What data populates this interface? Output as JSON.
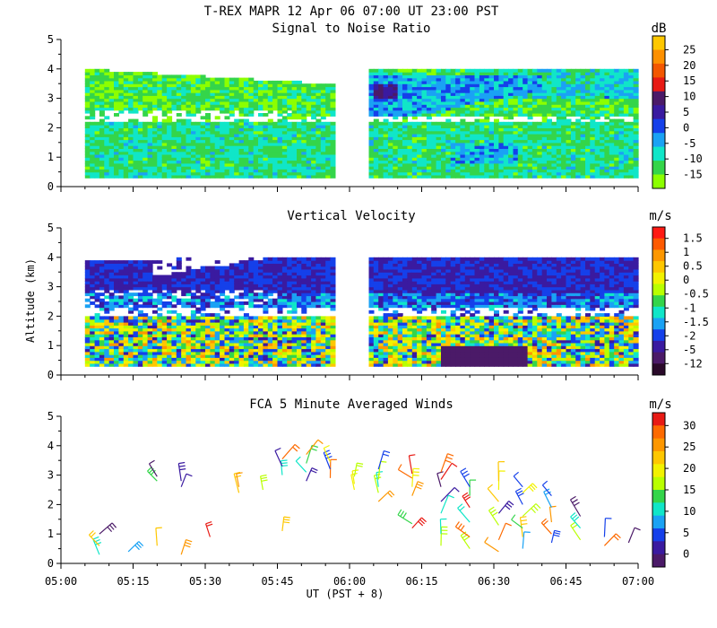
{
  "header": {
    "title": "T-REX  MAPR 12 Apr 06  07:00 UT  23:00  PST"
  },
  "xaxis": {
    "label": "UT  (PST + 8)",
    "ticks": [
      "05:00",
      "05:15",
      "05:30",
      "05:45",
      "06:00",
      "06:15",
      "06:30",
      "06:45",
      "07:00"
    ]
  },
  "yaxis": {
    "label": "Altitude (km)",
    "ticks": [
      "0",
      "1",
      "2",
      "3",
      "4",
      "5"
    ]
  },
  "chart_data": [
    {
      "type": "heatmap",
      "title": "Signal to Noise Ratio",
      "xlabel": "UT  (PST + 8)",
      "ylabel": "Altitude (km)",
      "xlim": [
        0,
        120
      ],
      "ylim": [
        0,
        5
      ],
      "data_gap": [
        57,
        63
      ],
      "data_altitude_range": [
        0.3,
        4.0
      ],
      "colorbar": {
        "unit": "dB",
        "ticks": [
          "25",
          "20",
          "15",
          "10",
          "5",
          "0",
          "-5",
          "-10",
          "-15"
        ],
        "colors": [
          "#fec700",
          "#fd9000",
          "#f35700",
          "#e81a14",
          "#4b1a68",
          "#3a1aa0",
          "#1540ea",
          "#1aa2f4",
          "#10e6c8",
          "#34d54a",
          "#8cff00"
        ]
      }
    },
    {
      "type": "heatmap",
      "title": "Vertical Velocity",
      "xlabel": "UT  (PST + 8)",
      "ylabel": "Altitude (km)",
      "xlim": [
        0,
        120
      ],
      "ylim": [
        0,
        5
      ],
      "data_gap": [
        57,
        63
      ],
      "data_altitude_range": [
        0.3,
        4.0
      ],
      "colorbar": {
        "unit": "m/s",
        "ticks": [
          "1.5",
          "1",
          "0.5",
          "0",
          "-0.5",
          "-1",
          "-1.5",
          "-2",
          "-5",
          "-12"
        ],
        "colors": [
          "#ff1a14",
          "#fe5a00",
          "#fd9700",
          "#fec700",
          "#f2f200",
          "#b9ff00",
          "#34d54a",
          "#10e6c8",
          "#1aa2f4",
          "#1540ea",
          "#3a1aa0",
          "#4b1a68",
          "#2a0a2a"
        ]
      }
    },
    {
      "type": "barbs",
      "title": "FCA 5 Minute Averaged Winds",
      "xlabel": "UT  (PST + 8)",
      "ylabel": "Altitude (km)",
      "xlim": [
        0,
        120
      ],
      "ylim": [
        0,
        5
      ],
      "barb_columns": [
        {
          "t": 8,
          "altitudes": [
            0.3,
            0.6,
            1.0
          ]
        },
        {
          "t": 14,
          "altitudes": [
            0.4
          ]
        },
        {
          "t": 20,
          "altitudes": [
            0.6,
            2.8,
            2.95
          ]
        },
        {
          "t": 25,
          "altitudes": [
            0.3,
            2.6,
            2.8
          ]
        },
        {
          "t": 31,
          "altitudes": [
            0.9
          ]
        },
        {
          "t": 37,
          "altitudes": [
            2.4,
            2.6
          ]
        },
        {
          "t": 42,
          "altitudes": [
            2.5
          ]
        },
        {
          "t": 46,
          "altitudes": [
            1.1,
            3.0,
            3.3,
            3.55
          ]
        },
        {
          "t": 51,
          "altitudes": [
            2.8,
            3.1,
            3.4,
            3.7
          ]
        },
        {
          "t": 56,
          "altitudes": [
            2.9,
            3.2,
            3.45
          ]
        },
        {
          "t": 61,
          "altitudes": [
            2.5,
            2.7,
            2.95
          ]
        },
        {
          "t": 66,
          "altitudes": [
            2.1,
            2.4,
            2.6,
            2.85,
            3.2
          ]
        },
        {
          "t": 73,
          "altitudes": [
            1.2,
            1.35,
            2.3,
            2.6,
            2.9,
            3.05
          ]
        },
        {
          "t": 79,
          "altitudes": [
            0.6,
            1.0,
            1.7,
            2.1,
            2.6,
            2.85,
            3.1
          ]
        },
        {
          "t": 85,
          "altitudes": [
            0.5,
            0.9,
            1.4,
            1.9,
            2.3,
            2.6
          ]
        },
        {
          "t": 91,
          "altitudes": [
            0.4,
            0.8,
            1.3,
            1.7,
            2.1,
            2.5,
            2.8
          ]
        },
        {
          "t": 96,
          "altitudes": [
            0.5,
            0.9,
            1.2,
            1.6,
            2.0,
            2.4,
            2.6
          ]
        },
        {
          "t": 102,
          "altitudes": [
            0.7,
            1.0,
            1.4,
            1.9,
            2.3
          ]
        },
        {
          "t": 108,
          "altitudes": [
            0.8,
            1.2,
            1.6
          ]
        },
        {
          "t": 113,
          "altitudes": [
            0.6,
            0.9
          ]
        },
        {
          "t": 118,
          "altitudes": [
            0.7
          ]
        }
      ],
      "colorbar": {
        "unit": "m/s",
        "ticks": [
          "30",
          "25",
          "20",
          "15",
          "10",
          "5",
          "0"
        ],
        "colors": [
          "#e81a14",
          "#fd6a00",
          "#fd9700",
          "#fec700",
          "#f2f200",
          "#b9ff00",
          "#34d54a",
          "#10e6c8",
          "#1aa2f4",
          "#1540ea",
          "#3a1aa0",
          "#4b1a68"
        ]
      }
    }
  ]
}
